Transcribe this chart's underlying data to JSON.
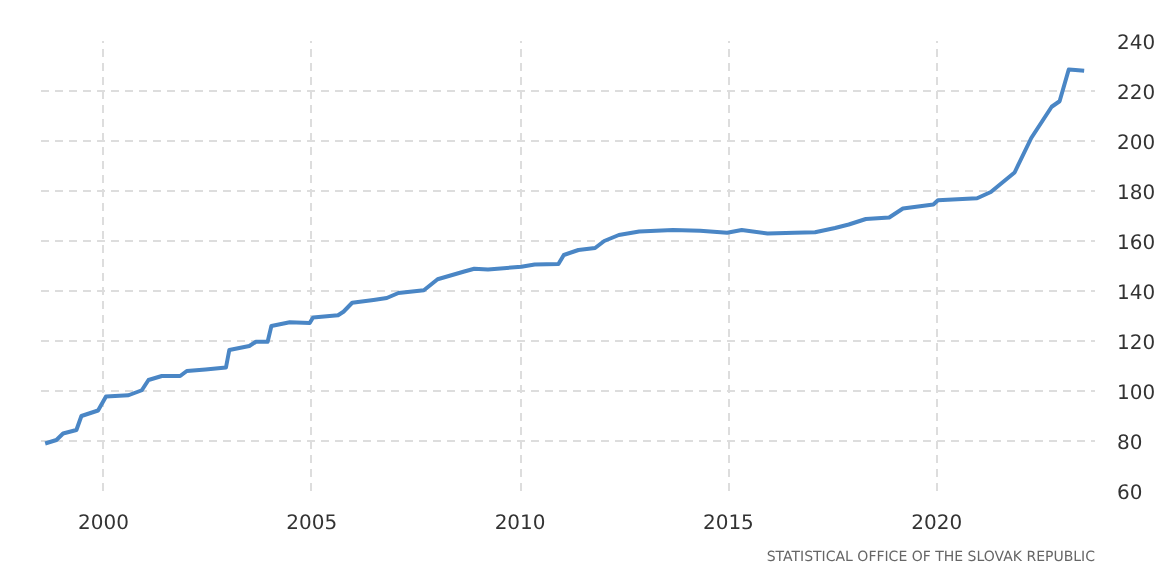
{
  "chart_data": {
    "type": "line",
    "x": [
      1998.6,
      1998.87,
      1999.03,
      1999.35,
      1999.47,
      1999.87,
      2000.06,
      2000.6,
      2000.92,
      2001.08,
      2001.4,
      2001.84,
      2002.0,
      2002.45,
      2002.94,
      2003.02,
      2003.5,
      2003.66,
      2003.94,
      2004.03,
      2004.47,
      2004.95,
      2005.03,
      2005.63,
      2005.76,
      2005.97,
      2006.48,
      2006.8,
      2007.08,
      2007.69,
      2008.02,
      2008.66,
      2008.9,
      2009.23,
      2010.03,
      2010.35,
      2010.92,
      2011.05,
      2011.4,
      2011.8,
      2012.02,
      2012.37,
      2012.86,
      2013.67,
      2014.32,
      2014.97,
      2015.32,
      2015.94,
      2016.59,
      2017.08,
      2017.56,
      2017.89,
      2018.3,
      2018.86,
      2019.19,
      2019.92,
      2020.03,
      2020.97,
      2021.3,
      2021.87,
      2022.27,
      2022.76,
      2022.95,
      2023.17,
      2023.33,
      2023.54
    ],
    "series": [
      {
        "color": "#4a86c5",
        "values": [
          79,
          80.4,
          83,
          84.4,
          90,
          92.2,
          97.8,
          98.3,
          100.3,
          104.4,
          106,
          106,
          108,
          108.6,
          109.4,
          116.4,
          118,
          119.7,
          119.7,
          126,
          127.5,
          127.2,
          129.4,
          130.3,
          131.7,
          135.3,
          136.4,
          137.2,
          139.2,
          140.3,
          144.7,
          147.8,
          148.9,
          148.6,
          149.7,
          150.6,
          150.8,
          154.4,
          156.4,
          157.2,
          160,
          162.4,
          163.8,
          164.4,
          164.1,
          163.3,
          164.4,
          163,
          163.3,
          163.5,
          165.2,
          166.6,
          168.8,
          169.4,
          173,
          174.6,
          176.3,
          177.1,
          179.6,
          187.4,
          201.2,
          213.7,
          215.9,
          228.6,
          228.4,
          228.1
        ]
      }
    ],
    "xlim": [
      1998.5,
      2023.8
    ],
    "xticks": [
      2000,
      2005,
      2010,
      2015,
      2020
    ],
    "ylim": [
      60,
      240
    ],
    "yticks": [
      60,
      80,
      100,
      120,
      140,
      160,
      180,
      200,
      220,
      240
    ],
    "grid": true,
    "line_style": "solid",
    "annotations": [
      "STATISTICAL OFFICE OF THE SLOVAK REPUBLIC"
    ]
  }
}
